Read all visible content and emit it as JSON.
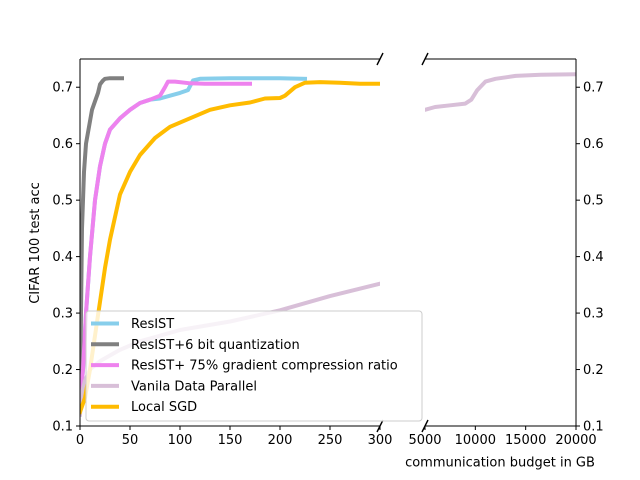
{
  "chart_data": {
    "type": "line",
    "title": "",
    "ylabel": "CIFAR 100 test acc",
    "xlabel": "communication budget in GB",
    "ylim": [
      0.1,
      0.75
    ],
    "y_ticks": [
      "0.1",
      "0.2",
      "0.3",
      "0.4",
      "0.5",
      "0.6",
      "0.7"
    ],
    "y_tick_values": [
      0.1,
      0.2,
      0.3,
      0.4,
      0.5,
      0.6,
      0.7
    ],
    "x_break": true,
    "panels": [
      {
        "name": "left",
        "xlim": [
          0,
          300
        ],
        "x_ticks": [
          "0",
          "50",
          "100",
          "150",
          "200",
          "250",
          "300"
        ],
        "x_tick_values": [
          0,
          50,
          100,
          150,
          200,
          250,
          300
        ]
      },
      {
        "name": "right",
        "xlim": [
          5000,
          20000
        ],
        "x_ticks": [
          "5000",
          "10000",
          "15000",
          "20000"
        ],
        "x_tick_values": [
          5000,
          10000,
          15000,
          20000
        ]
      }
    ],
    "legend_position": "bottom-left",
    "series": [
      {
        "name": "ResIST",
        "color": "#87ceeb",
        "left": [
          [
            0,
            0.14
          ],
          [
            3,
            0.2
          ],
          [
            6,
            0.3
          ],
          [
            10,
            0.4
          ],
          [
            15,
            0.5
          ],
          [
            20,
            0.56
          ],
          [
            25,
            0.6
          ],
          [
            30,
            0.625
          ],
          [
            40,
            0.645
          ],
          [
            50,
            0.66
          ],
          [
            60,
            0.672
          ],
          [
            70,
            0.678
          ],
          [
            80,
            0.68
          ],
          [
            90,
            0.685
          ],
          [
            100,
            0.69
          ],
          [
            108,
            0.695
          ],
          [
            113,
            0.712
          ],
          [
            120,
            0.715
          ],
          [
            150,
            0.716
          ],
          [
            200,
            0.716
          ],
          [
            225,
            0.715
          ]
        ],
        "right": []
      },
      {
        "name": "ResIST+6 bit quantization",
        "color": "#808080",
        "left": [
          [
            0,
            0.14
          ],
          [
            1,
            0.3
          ],
          [
            2,
            0.45
          ],
          [
            4,
            0.55
          ],
          [
            6,
            0.6
          ],
          [
            9,
            0.63
          ],
          [
            12,
            0.66
          ],
          [
            15,
            0.675
          ],
          [
            18,
            0.69
          ],
          [
            20,
            0.705
          ],
          [
            23,
            0.712
          ],
          [
            25,
            0.715
          ],
          [
            30,
            0.716
          ],
          [
            40,
            0.716
          ],
          [
            42,
            0.716
          ]
        ],
        "right": []
      },
      {
        "name": "ResIST+ 75% gradient compression ratio",
        "color": "#ee82ee",
        "left": [
          [
            0,
            0.14
          ],
          [
            3,
            0.2
          ],
          [
            6,
            0.3
          ],
          [
            10,
            0.4
          ],
          [
            15,
            0.5
          ],
          [
            20,
            0.56
          ],
          [
            25,
            0.6
          ],
          [
            30,
            0.625
          ],
          [
            40,
            0.645
          ],
          [
            50,
            0.66
          ],
          [
            60,
            0.672
          ],
          [
            70,
            0.678
          ],
          [
            80,
            0.685
          ],
          [
            85,
            0.7
          ],
          [
            88,
            0.71
          ],
          [
            95,
            0.71
          ],
          [
            110,
            0.707
          ],
          [
            125,
            0.706
          ],
          [
            150,
            0.706
          ],
          [
            170,
            0.706
          ]
        ],
        "right": []
      },
      {
        "name": "Vanila Data Parallel",
        "color": "#d8bfd8",
        "left": [
          [
            0,
            0.12
          ],
          [
            2,
            0.16
          ],
          [
            5,
            0.18
          ],
          [
            10,
            0.2
          ],
          [
            20,
            0.215
          ],
          [
            40,
            0.235
          ],
          [
            60,
            0.25
          ],
          [
            80,
            0.26
          ],
          [
            100,
            0.27
          ],
          [
            150,
            0.285
          ],
          [
            200,
            0.305
          ],
          [
            250,
            0.33
          ],
          [
            300,
            0.352
          ]
        ],
        "right": [
          [
            5000,
            0.66
          ],
          [
            6000,
            0.665
          ],
          [
            7500,
            0.668
          ],
          [
            9000,
            0.671
          ],
          [
            9600,
            0.678
          ],
          [
            10200,
            0.695
          ],
          [
            11000,
            0.71
          ],
          [
            12000,
            0.715
          ],
          [
            14000,
            0.72
          ],
          [
            16500,
            0.722
          ],
          [
            20000,
            0.723
          ]
        ]
      },
      {
        "name": "Local SGD",
        "color": "#ffbb00",
        "left": [
          [
            0,
            0.125
          ],
          [
            5,
            0.15
          ],
          [
            10,
            0.2
          ],
          [
            15,
            0.26
          ],
          [
            20,
            0.32
          ],
          [
            25,
            0.38
          ],
          [
            30,
            0.43
          ],
          [
            35,
            0.47
          ],
          [
            40,
            0.51
          ],
          [
            50,
            0.55
          ],
          [
            60,
            0.58
          ],
          [
            75,
            0.61
          ],
          [
            90,
            0.63
          ],
          [
            110,
            0.645
          ],
          [
            130,
            0.66
          ],
          [
            150,
            0.668
          ],
          [
            170,
            0.673
          ],
          [
            185,
            0.68
          ],
          [
            200,
            0.681
          ],
          [
            205,
            0.685
          ],
          [
            215,
            0.7
          ],
          [
            225,
            0.708
          ],
          [
            240,
            0.709
          ],
          [
            260,
            0.708
          ],
          [
            280,
            0.706
          ],
          [
            300,
            0.706
          ]
        ],
        "right": []
      }
    ]
  }
}
